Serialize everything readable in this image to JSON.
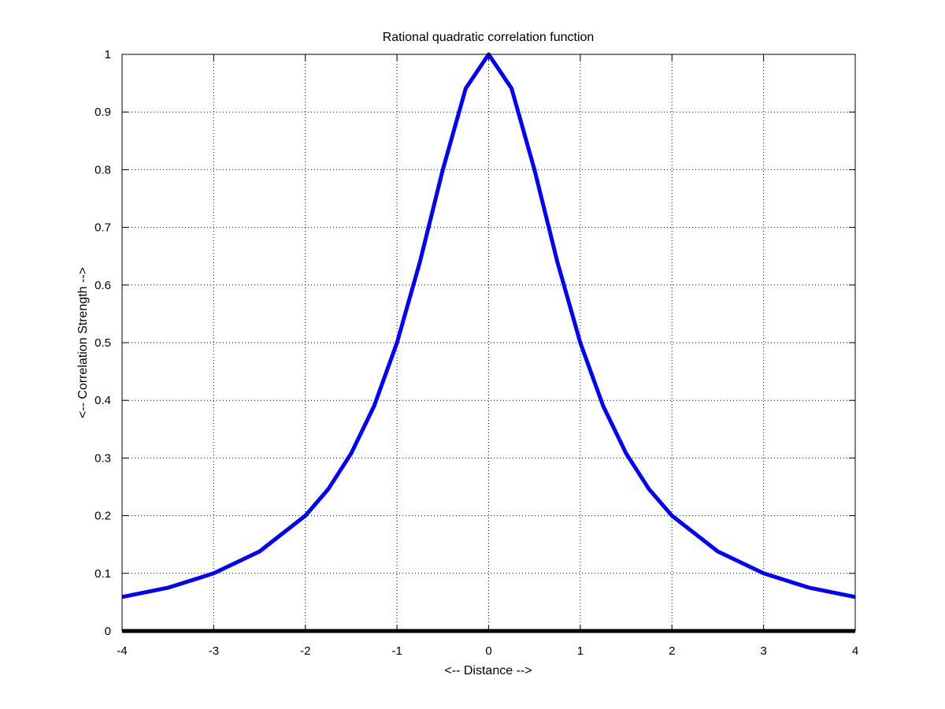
{
  "chart_data": {
    "type": "line",
    "title": "Rational quadratic correlation function",
    "xlabel": "<-- Distance -->",
    "ylabel": "<-- Correlation Strength -->",
    "xlim": [
      -4,
      4
    ],
    "ylim": [
      0,
      1
    ],
    "grid": true,
    "x_ticks": [
      -4,
      -3,
      -2,
      -1,
      0,
      1,
      2,
      3,
      4
    ],
    "x_tick_labels": [
      "-4",
      "-3",
      "-2",
      "-1",
      "0",
      "1",
      "2",
      "3",
      "4"
    ],
    "y_ticks": [
      0,
      0.1,
      0.2,
      0.3,
      0.4,
      0.5,
      0.6,
      0.7,
      0.8,
      0.9,
      1
    ],
    "y_tick_labels": [
      "0",
      "0.1",
      "0.2",
      "0.3",
      "0.4",
      "0.5",
      "0.6",
      "0.7",
      "0.8",
      "0.9",
      "1"
    ],
    "series": [
      {
        "color": "#0000ff",
        "x": [
          -4,
          -3.5,
          -3,
          -2.5,
          -2,
          -1.75,
          -1.5,
          -1.25,
          -1,
          -0.75,
          -0.5,
          -0.25,
          0,
          0.25,
          0.5,
          0.75,
          1,
          1.25,
          1.5,
          1.75,
          2,
          2.5,
          3,
          3.5,
          4
        ],
        "y": [
          0.059,
          0.075,
          0.1,
          0.138,
          0.2,
          0.246,
          0.308,
          0.39,
          0.5,
          0.64,
          0.8,
          0.941,
          1,
          0.941,
          0.8,
          0.64,
          0.5,
          0.39,
          0.308,
          0.246,
          0.2,
          0.138,
          0.1,
          0.075,
          0.059
        ]
      },
      {
        "color": "#000000",
        "x": [
          -4,
          4
        ],
        "y": [
          0,
          0
        ]
      }
    ]
  }
}
